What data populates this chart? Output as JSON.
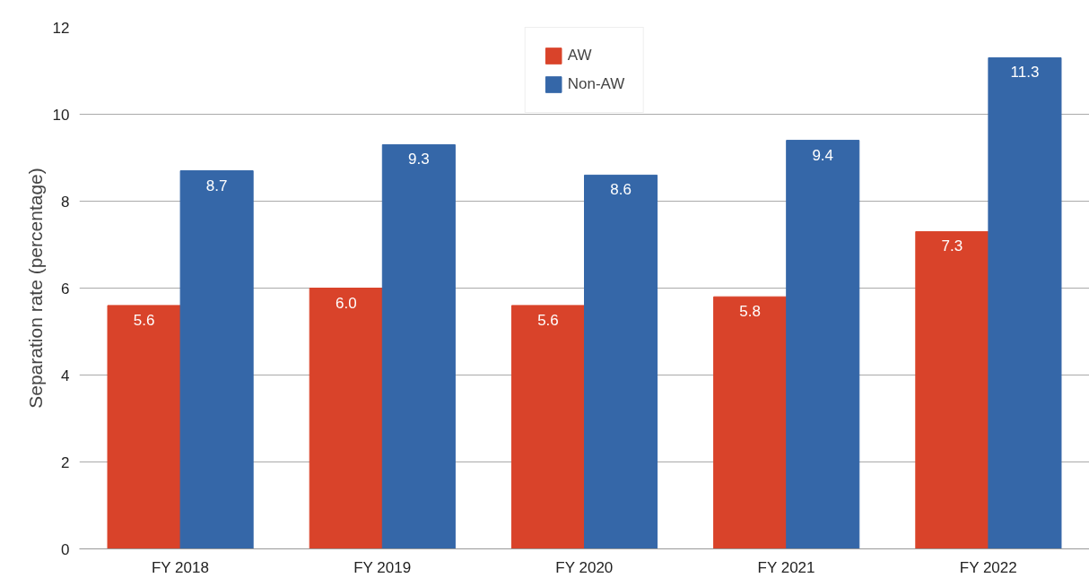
{
  "chart_data": {
    "type": "bar",
    "ylabel": "Separation rate (percentage)",
    "categories": [
      "FY 2018",
      "FY 2019",
      "FY 2020",
      "FY 2021",
      "FY 2022"
    ],
    "series": [
      {
        "name": "AW",
        "color": "#d9432a",
        "values": [
          5.6,
          6.0,
          5.6,
          5.8,
          7.3
        ],
        "value_labels": [
          "5.6",
          "6.0",
          "5.6",
          "5.8",
          "7.3"
        ]
      },
      {
        "name": "Non-AW",
        "color": "#3567a8",
        "values": [
          8.7,
          9.3,
          8.6,
          9.4,
          11.3
        ],
        "value_labels": [
          "8.7",
          "9.3",
          "8.6",
          "9.4",
          "11.3"
        ]
      }
    ],
    "ylim": [
      0,
      12
    ],
    "yticks": [
      0,
      2,
      4,
      6,
      8,
      10,
      12
    ],
    "grid": "y",
    "legend": "top"
  }
}
